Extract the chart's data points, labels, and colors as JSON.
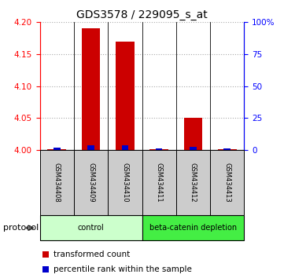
{
  "title": "GDS3578 / 229095_s_at",
  "samples": [
    "GSM434408",
    "GSM434409",
    "GSM434410",
    "GSM434411",
    "GSM434412",
    "GSM434413"
  ],
  "transformed_counts": [
    4.001,
    4.19,
    4.17,
    4.001,
    4.05,
    4.001
  ],
  "percentile_ranks": [
    2.0,
    3.5,
    4.0,
    1.5,
    2.5,
    1.5
  ],
  "ylim_left": [
    4.0,
    4.2
  ],
  "ylim_right": [
    0,
    100
  ],
  "yticks_left": [
    4.0,
    4.05,
    4.1,
    4.15,
    4.2
  ],
  "yticks_right": [
    0,
    25,
    50,
    75,
    100
  ],
  "ytick_labels_right": [
    "0",
    "25",
    "50",
    "75",
    "100%"
  ],
  "groups": [
    {
      "label": "control",
      "spans": [
        0,
        3
      ],
      "color": "#ccffcc"
    },
    {
      "label": "beta-catenin depletion",
      "spans": [
        3,
        6
      ],
      "color": "#44ee44"
    }
  ],
  "bar_color_red": "#cc0000",
  "bar_color_blue": "#0000cc",
  "bar_width": 0.55,
  "blue_bar_width": 0.2,
  "background_color": "#ffffff",
  "grid_color": "#aaaaaa",
  "label_red": "transformed count",
  "label_blue": "percentile rank within the sample",
  "protocol_label": "protocol",
  "sample_box_color": "#cccccc",
  "title_fontsize": 10,
  "tick_fontsize": 7.5,
  "label_fontsize": 7.5,
  "sample_fontsize": 6
}
